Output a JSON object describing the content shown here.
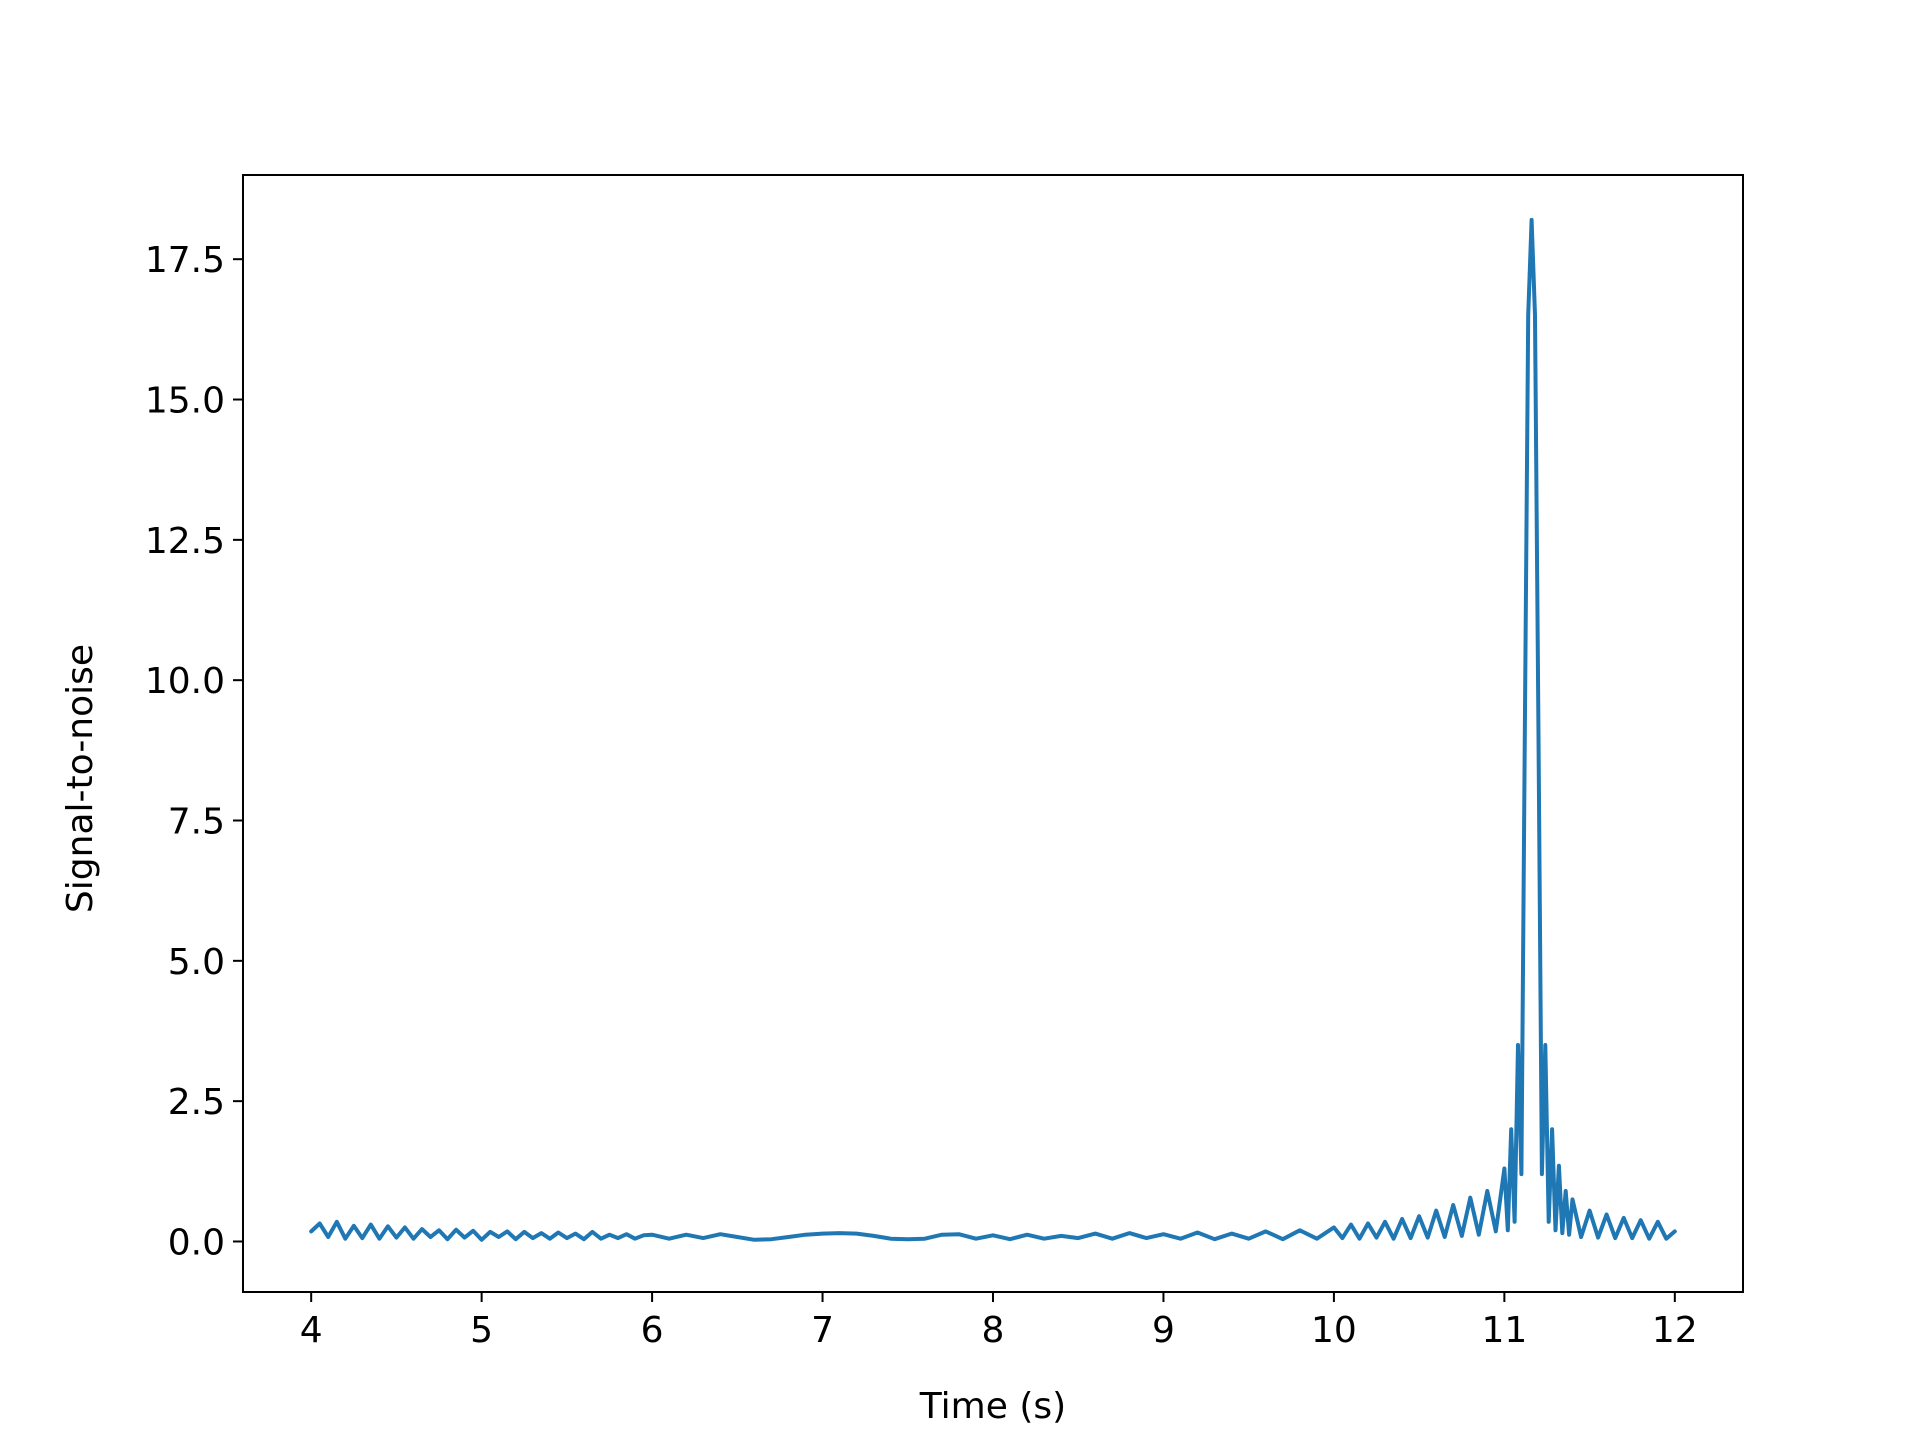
{
  "chart_data": {
    "type": "line",
    "title": "",
    "xlabel": "Time (s)",
    "ylabel": "Signal-to-noise",
    "xlim": [
      3.6,
      12.4
    ],
    "ylim": [
      -0.9,
      19.0
    ],
    "xticks": [
      4,
      5,
      6,
      7,
      8,
      9,
      10,
      11,
      12
    ],
    "xtick_labels": [
      "4",
      "5",
      "6",
      "7",
      "8",
      "9",
      "10",
      "11",
      "12"
    ],
    "yticks": [
      0.0,
      2.5,
      5.0,
      7.5,
      10.0,
      12.5,
      15.0,
      17.5
    ],
    "ytick_labels": [
      "0.0",
      "2.5",
      "5.0",
      "7.5",
      "10.0",
      "12.5",
      "15.0",
      "17.5"
    ],
    "grid": false,
    "legend": "none",
    "series": [
      {
        "color": "#1f77b4",
        "x": [
          4.0,
          4.05,
          4.1,
          4.15,
          4.2,
          4.25,
          4.3,
          4.35,
          4.4,
          4.45,
          4.5,
          4.55,
          4.6,
          4.65,
          4.7,
          4.75,
          4.8,
          4.85,
          4.9,
          4.95,
          5.0,
          5.05,
          5.1,
          5.15,
          5.2,
          5.25,
          5.3,
          5.35,
          5.4,
          5.45,
          5.5,
          5.55,
          5.6,
          5.65,
          5.7,
          5.75,
          5.8,
          5.85,
          5.9,
          5.95,
          6.0,
          6.1,
          6.2,
          6.3,
          6.4,
          6.5,
          6.6,
          6.7,
          6.8,
          6.9,
          7.0,
          7.1,
          7.2,
          7.3,
          7.4,
          7.5,
          7.6,
          7.7,
          7.8,
          7.9,
          8.0,
          8.1,
          8.2,
          8.3,
          8.4,
          8.5,
          8.6,
          8.7,
          8.8,
          8.9,
          9.0,
          9.1,
          9.2,
          9.3,
          9.4,
          9.5,
          9.6,
          9.7,
          9.8,
          9.9,
          10.0,
          10.05,
          10.1,
          10.15,
          10.2,
          10.25,
          10.3,
          10.35,
          10.4,
          10.45,
          10.5,
          10.55,
          10.6,
          10.65,
          10.7,
          10.75,
          10.8,
          10.85,
          10.9,
          10.95,
          11.0,
          11.02,
          11.04,
          11.06,
          11.08,
          11.1,
          11.12,
          11.14,
          11.16,
          11.18,
          11.2,
          11.22,
          11.24,
          11.26,
          11.28,
          11.3,
          11.32,
          11.34,
          11.36,
          11.38,
          11.4,
          11.45,
          11.5,
          11.55,
          11.6,
          11.65,
          11.7,
          11.75,
          11.8,
          11.85,
          11.9,
          11.95,
          12.0
        ],
        "y": [
          0.18,
          0.32,
          0.08,
          0.35,
          0.05,
          0.28,
          0.06,
          0.3,
          0.05,
          0.27,
          0.07,
          0.25,
          0.05,
          0.22,
          0.08,
          0.2,
          0.04,
          0.21,
          0.07,
          0.19,
          0.03,
          0.17,
          0.08,
          0.18,
          0.04,
          0.17,
          0.06,
          0.15,
          0.05,
          0.16,
          0.06,
          0.14,
          0.04,
          0.17,
          0.05,
          0.12,
          0.06,
          0.13,
          0.05,
          0.11,
          0.12,
          0.05,
          0.12,
          0.06,
          0.13,
          0.08,
          0.03,
          0.04,
          0.08,
          0.12,
          0.14,
          0.15,
          0.14,
          0.1,
          0.05,
          0.04,
          0.05,
          0.12,
          0.13,
          0.05,
          0.11,
          0.04,
          0.12,
          0.05,
          0.1,
          0.06,
          0.14,
          0.05,
          0.15,
          0.06,
          0.13,
          0.05,
          0.16,
          0.04,
          0.14,
          0.05,
          0.18,
          0.04,
          0.2,
          0.05,
          0.25,
          0.06,
          0.3,
          0.05,
          0.32,
          0.07,
          0.35,
          0.05,
          0.4,
          0.06,
          0.45,
          0.07,
          0.55,
          0.08,
          0.65,
          0.1,
          0.78,
          0.12,
          0.9,
          0.18,
          1.3,
          0.2,
          2.0,
          0.35,
          3.5,
          1.2,
          9.0,
          16.5,
          18.2,
          16.5,
          9.0,
          1.2,
          3.5,
          0.35,
          2.0,
          0.2,
          1.35,
          0.15,
          0.9,
          0.12,
          0.75,
          0.08,
          0.55,
          0.07,
          0.48,
          0.06,
          0.42,
          0.06,
          0.38,
          0.05,
          0.35,
          0.05,
          0.18
        ]
      }
    ]
  }
}
